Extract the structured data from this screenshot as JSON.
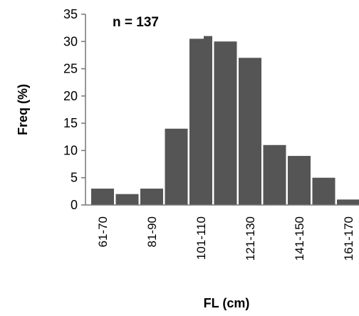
{
  "chart_data": {
    "type": "bar",
    "categories": [
      "61-70",
      "71-80",
      "81-90",
      "91-100",
      "101-110",
      "111-120",
      "121-130",
      "131-140",
      "141-150",
      "151-160",
      "161-170"
    ],
    "values": [
      3,
      2,
      3,
      14,
      30.5,
      30,
      27,
      11,
      9,
      5,
      1
    ],
    "extra_tick_value": 31,
    "visible_tick_labels": [
      "61-70",
      "81-90",
      "101-110",
      "121-130",
      "141-150",
      "161-170"
    ],
    "xlabel": "FL (cm)",
    "ylabel": "Freq (%)",
    "yticks": [
      "0",
      "5",
      "10",
      "15",
      "20",
      "25",
      "30",
      "35"
    ],
    "ylim": [
      0,
      35
    ],
    "annotation": "n = 137",
    "bar_color": "#555555",
    "grid": false,
    "legend": "none"
  }
}
